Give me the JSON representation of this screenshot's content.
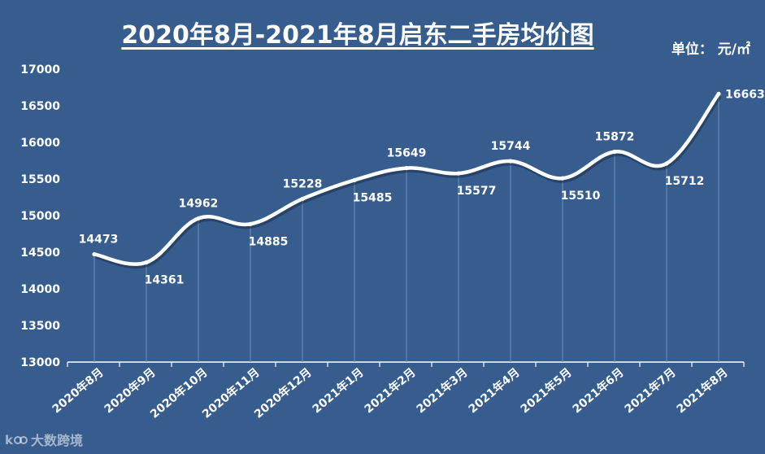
{
  "title": "2020年8月-2021年8月启东二手房均价图",
  "unit": "单位：  元/㎡",
  "watermark": "大数跨境",
  "colors": {
    "background": "#375d8e",
    "line": "#ffffff",
    "text": "#ffffff",
    "drop_line": "#6f8fb8"
  },
  "chart_data": {
    "type": "line",
    "title": "2020年8月-2021年8月启东二手房均价图",
    "xlabel": "",
    "ylabel": "",
    "categories": [
      "2020年8月",
      "2020年9月",
      "2020年10月",
      "2020年11月",
      "2020年12月",
      "2021年1月",
      "2021年2月",
      "2021年3月",
      "2021年4月",
      "2021年5月",
      "2021年6月",
      "2021年7月",
      "2021年8月"
    ],
    "series": [
      {
        "values": [
          14473,
          14361,
          14962,
          14885,
          15228,
          15485,
          15649,
          15577,
          15744,
          15510,
          15872,
          15712,
          16663
        ]
      }
    ],
    "yticks": [
      13000,
      13500,
      14000,
      14500,
      15000,
      15500,
      16000,
      16500,
      17000
    ],
    "ylim": [
      13000,
      17000
    ],
    "data_labels": true,
    "grid": false,
    "legend": false
  }
}
